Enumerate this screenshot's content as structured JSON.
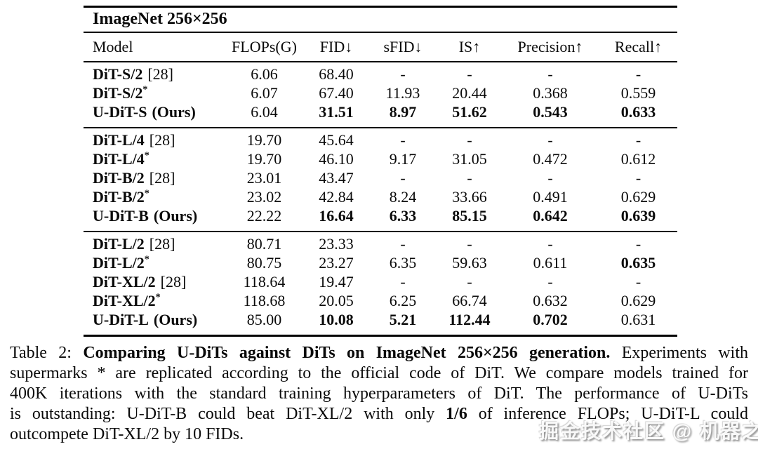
{
  "table": {
    "title": "ImageNet 256×256",
    "columns": [
      "Model",
      "FLOPs(G)",
      "FID↓",
      "sFID↓",
      "IS↑",
      "Precision↑",
      "Recall↑"
    ],
    "groups": [
      {
        "rows": [
          {
            "model": "DiT-S/2",
            "suffix": "[28]",
            "suffix_style": "ref",
            "values": [
              {
                "t": "6.06"
              },
              {
                "t": "68.40"
              },
              {
                "t": "-"
              },
              {
                "t": "-"
              },
              {
                "t": "-"
              },
              {
                "t": "-"
              }
            ]
          },
          {
            "model": "DiT-S/2",
            "suffix": "*",
            "suffix_style": "star",
            "values": [
              {
                "t": "6.07"
              },
              {
                "t": "67.40"
              },
              {
                "t": "11.93"
              },
              {
                "t": "20.44"
              },
              {
                "t": "0.368"
              },
              {
                "t": "0.559"
              }
            ]
          },
          {
            "model": "U-DiT-S",
            "suffix": "(Ours)",
            "suffix_style": "ours",
            "values": [
              {
                "t": "6.04"
              },
              {
                "t": "31.51",
                "b": true
              },
              {
                "t": "8.97",
                "b": true
              },
              {
                "t": "51.62",
                "b": true
              },
              {
                "t": "0.543",
                "b": true
              },
              {
                "t": "0.633",
                "b": true
              }
            ]
          }
        ]
      },
      {
        "rows": [
          {
            "model": "DiT-L/4",
            "suffix": "[28]",
            "suffix_style": "ref",
            "values": [
              {
                "t": "19.70"
              },
              {
                "t": "45.64"
              },
              {
                "t": "-"
              },
              {
                "t": "-"
              },
              {
                "t": "-"
              },
              {
                "t": "-"
              }
            ]
          },
          {
            "model": "DiT-L/4",
            "suffix": "*",
            "suffix_style": "star",
            "values": [
              {
                "t": "19.70"
              },
              {
                "t": "46.10"
              },
              {
                "t": "9.17"
              },
              {
                "t": "31.05"
              },
              {
                "t": "0.472"
              },
              {
                "t": "0.612"
              }
            ]
          },
          {
            "model": "DiT-B/2",
            "suffix": "[28]",
            "suffix_style": "ref",
            "values": [
              {
                "t": "23.01"
              },
              {
                "t": "43.47"
              },
              {
                "t": "-"
              },
              {
                "t": "-"
              },
              {
                "t": "-"
              },
              {
                "t": "-"
              }
            ]
          },
          {
            "model": "DiT-B/2",
            "suffix": "*",
            "suffix_style": "star",
            "values": [
              {
                "t": "23.02"
              },
              {
                "t": "42.84"
              },
              {
                "t": "8.24"
              },
              {
                "t": "33.66"
              },
              {
                "t": "0.491"
              },
              {
                "t": "0.629"
              }
            ]
          },
          {
            "model": "U-DiT-B",
            "suffix": "(Ours)",
            "suffix_style": "ours",
            "values": [
              {
                "t": "22.22"
              },
              {
                "t": "16.64",
                "b": true
              },
              {
                "t": "6.33",
                "b": true
              },
              {
                "t": "85.15",
                "b": true
              },
              {
                "t": "0.642",
                "b": true
              },
              {
                "t": "0.639",
                "b": true
              }
            ]
          }
        ]
      },
      {
        "rows": [
          {
            "model": "DiT-L/2",
            "suffix": "[28]",
            "suffix_style": "ref",
            "values": [
              {
                "t": "80.71"
              },
              {
                "t": "23.33"
              },
              {
                "t": "-"
              },
              {
                "t": "-"
              },
              {
                "t": "-"
              },
              {
                "t": "-"
              }
            ]
          },
          {
            "model": "DiT-L/2",
            "suffix": "*",
            "suffix_style": "star",
            "values": [
              {
                "t": "80.75"
              },
              {
                "t": "23.27"
              },
              {
                "t": "6.35"
              },
              {
                "t": "59.63"
              },
              {
                "t": "0.611"
              },
              {
                "t": "0.635",
                "b": true
              }
            ]
          },
          {
            "model": "DiT-XL/2",
            "suffix": "[28]",
            "suffix_style": "ref",
            "values": [
              {
                "t": "118.64"
              },
              {
                "t": "19.47"
              },
              {
                "t": "-"
              },
              {
                "t": "-"
              },
              {
                "t": "-"
              },
              {
                "t": "-"
              }
            ]
          },
          {
            "model": "DiT-XL/2",
            "suffix": "*",
            "suffix_style": "star",
            "values": [
              {
                "t": "118.68"
              },
              {
                "t": "20.05"
              },
              {
                "t": "6.25"
              },
              {
                "t": "66.74"
              },
              {
                "t": "0.632"
              },
              {
                "t": "0.629"
              }
            ]
          },
          {
            "model": "U-DiT-L",
            "suffix": "(Ours)",
            "suffix_style": "ours",
            "values": [
              {
                "t": "85.00"
              },
              {
                "t": "10.08",
                "b": true
              },
              {
                "t": "5.21",
                "b": true
              },
              {
                "t": "112.44",
                "b": true
              },
              {
                "t": "0.702",
                "b": true
              },
              {
                "t": "0.631"
              }
            ]
          }
        ]
      }
    ]
  },
  "caption": {
    "lines": [
      {
        "justify": true,
        "segments": [
          {
            "t": "Table 2: "
          },
          {
            "t": "Comparing U-DiTs against DiTs on ImageNet 256×256 generation.",
            "b": true
          },
          {
            "t": " Experiments with"
          }
        ]
      },
      {
        "justify": true,
        "segments": [
          {
            "t": "supermarks * are replicated according to the official code of DiT. We compare models trained for"
          }
        ]
      },
      {
        "justify": true,
        "segments": [
          {
            "t": "400K iterations with the standard training hyperparameters of DiT. The performance of U-DiTs"
          }
        ]
      },
      {
        "justify": true,
        "segments": [
          {
            "t": "is outstanding: U-DiT-B could beat DiT-XL/2 with only "
          },
          {
            "t": "1/6",
            "b": true
          },
          {
            "t": " of inference FLOPs; U-DiT-L could"
          }
        ]
      },
      {
        "justify": false,
        "segments": [
          {
            "t": "outcompete DiT-XL/2 by 10 FIDs."
          }
        ]
      }
    ]
  },
  "watermark": {
    "text": "掘金技术社区 @ 机器之心"
  }
}
